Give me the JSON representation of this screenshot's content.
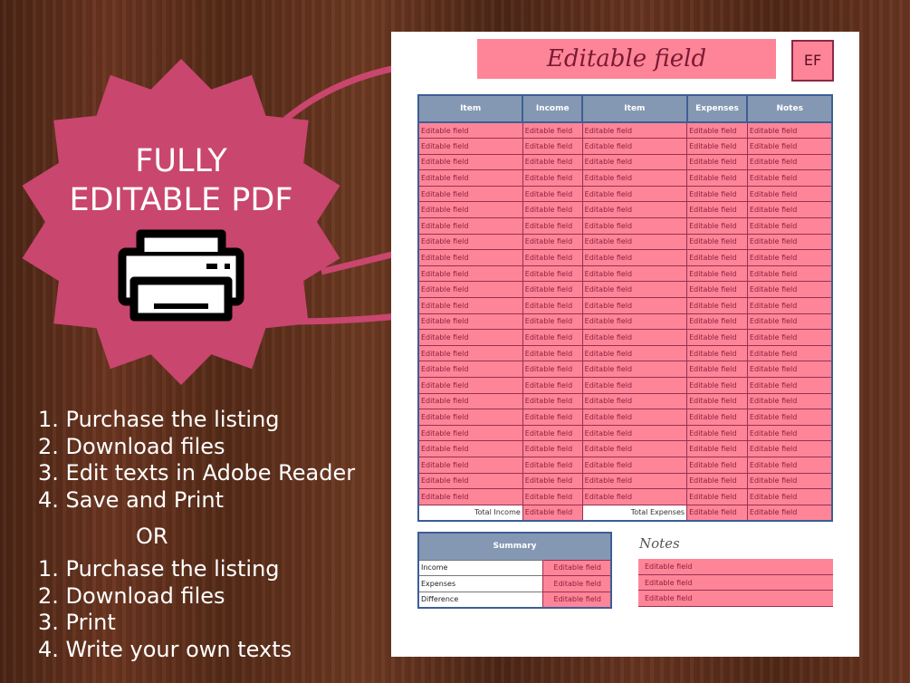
{
  "colors": {
    "badge": "#c9466f",
    "field": "#fe8598",
    "header": "#8598b3",
    "border": "#3d5e96"
  },
  "badge": {
    "line1": "FULLY",
    "line2": "EDITABLE PDF",
    "icon": "printer-icon"
  },
  "steps_a": [
    "1. Purchase the listing",
    "2. Download files",
    "3. Edit texts in Adobe Reader",
    "4. Save and Print"
  ],
  "or": "OR",
  "steps_b": [
    "1. Purchase the listing",
    "2. Download files",
    "3. Print",
    "4. Write your own texts"
  ],
  "doc": {
    "title": "Editable field",
    "initials": "EF",
    "headers": [
      "Item",
      "Income",
      "Item",
      "Expenses",
      "Notes"
    ],
    "rows": [
      [
        "Editable field",
        "Editable field",
        "Editable field",
        "Editable field",
        "Editable field"
      ],
      [
        "Editable field",
        "Editable field",
        "Editable field",
        "Editable field",
        "Editable field"
      ],
      [
        "Editable field",
        "Editable field",
        "Editable field",
        "Editable field",
        "Editable field"
      ],
      [
        "Editable field",
        "Editable field",
        "Editable field",
        "Editable field",
        "Editable field"
      ],
      [
        "Editable field",
        "Editable field",
        "Editable field",
        "Editable field",
        "Editable field"
      ],
      [
        "Editable field",
        "Editable field",
        "Editable field",
        "Editable field",
        "Editable field"
      ],
      [
        "Editable field",
        "Editable field",
        "Editable field",
        "Editable field",
        "Editable field"
      ],
      [
        "Editable field",
        "Editable field",
        "Editable field",
        "Editable field",
        "Editable field"
      ],
      [
        "Editable field",
        "Editable field",
        "Editable field",
        "Editable field",
        "Editable field"
      ],
      [
        "Editable field",
        "Editable field",
        "Editable field",
        "Editable field",
        "Editable field"
      ],
      [
        "Editable field",
        "Editable field",
        "Editable field",
        "Editable field",
        "Editable field"
      ],
      [
        "Editable field",
        "Editable field",
        "Editable field",
        "Editable field",
        "Editable field"
      ],
      [
        "Editable field",
        "Editable field",
        "Editable field",
        "Editable field",
        "Editable field"
      ],
      [
        "Editable field",
        "Editable field",
        "Editable field",
        "Editable field",
        "Editable field"
      ],
      [
        "Editable field",
        "Editable field",
        "Editable field",
        "Editable field",
        "Editable field"
      ],
      [
        "Editable field",
        "Editable field",
        "Editable field",
        "Editable field",
        "Editable field"
      ],
      [
        "Editable field",
        "Editable field",
        "Editable field",
        "Editable field",
        "Editable field"
      ],
      [
        "Editable field",
        "Editable field",
        "Editable field",
        "Editable field",
        "Editable field"
      ],
      [
        "Editable field",
        "Editable field",
        "Editable field",
        "Editable field",
        "Editable field"
      ],
      [
        "Editable field",
        "Editable field",
        "Editable field",
        "Editable field",
        "Editable field"
      ],
      [
        "Editable field",
        "Editable field",
        "Editable field",
        "Editable field",
        "Editable field"
      ],
      [
        "Editable field",
        "Editable field",
        "Editable field",
        "Editable field",
        "Editable field"
      ],
      [
        "Editable field",
        "Editable field",
        "Editable field",
        "Editable field",
        "Editable field"
      ],
      [
        "Editable field",
        "Editable field",
        "Editable field",
        "Editable field",
        "Editable field"
      ]
    ],
    "totals": [
      "Total Income",
      "Editable field",
      "Total Expenses",
      "Editable field",
      "Editable field"
    ],
    "summary": {
      "title": "Summary",
      "rows": [
        [
          "Income",
          "Editable field"
        ],
        [
          "Expenses",
          "Editable field"
        ],
        [
          "Difference",
          "Editable field"
        ]
      ]
    },
    "notes": {
      "label": "Notes",
      "rows": [
        "Editable field",
        "Editable field",
        "Editable field"
      ]
    }
  }
}
